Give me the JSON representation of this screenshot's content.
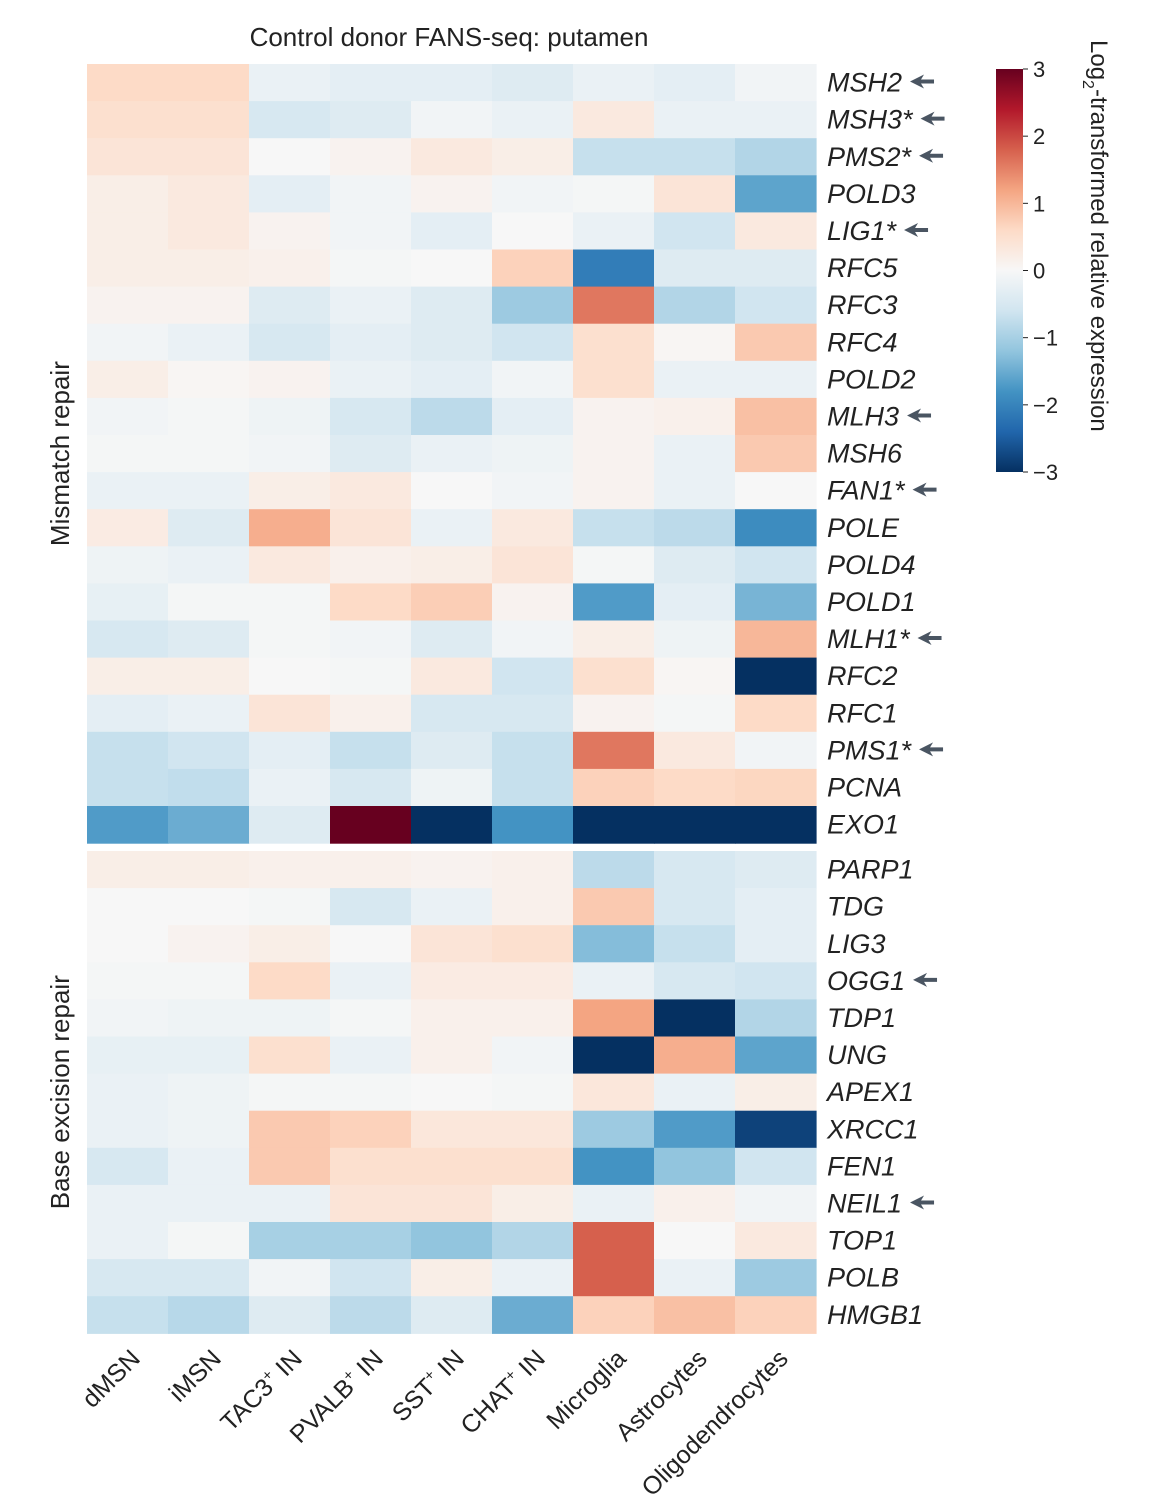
{
  "chart_data": {
    "type": "heatmap",
    "title": "Control donor FANS-seq: putamen",
    "columns": [
      "dMSN",
      "iMSN",
      "TAC3+ IN",
      "PVALB+ IN",
      "SST+ IN",
      "CHAT+ IN",
      "Microglia",
      "Astrocytes",
      "Oligodendrocytes"
    ],
    "column_labels": [
      {
        "base": "dMSN",
        "sup": "",
        "rest": ""
      },
      {
        "base": "iMSN",
        "sup": "",
        "rest": ""
      },
      {
        "base": "TAC3",
        "sup": "+",
        "rest": " IN"
      },
      {
        "base": "PVALB",
        "sup": "+",
        "rest": " IN"
      },
      {
        "base": "SST",
        "sup": "+",
        "rest": " IN"
      },
      {
        "base": "CHAT",
        "sup": "+",
        "rest": " IN"
      },
      {
        "base": "Microglia",
        "sup": "",
        "rest": ""
      },
      {
        "base": "Astrocytes",
        "sup": "",
        "rest": ""
      },
      {
        "base": "Oligodendrocytes",
        "sup": "",
        "rest": ""
      }
    ],
    "groups": [
      {
        "name": "Mismatch repair",
        "rows": [
          {
            "gene": "MSH2",
            "arrow": true,
            "values": [
              0.6,
              0.6,
              -0.2,
              -0.3,
              -0.3,
              -0.4,
              -0.2,
              -0.3,
              -0.1
            ]
          },
          {
            "gene": "MSH3*",
            "arrow": true,
            "values": [
              0.5,
              0.5,
              -0.5,
              -0.4,
              -0.1,
              -0.2,
              0.3,
              -0.2,
              -0.2
            ]
          },
          {
            "gene": "PMS2*",
            "arrow": true,
            "values": [
              0.4,
              0.4,
              0.0,
              0.1,
              0.3,
              0.2,
              -0.7,
              -0.7,
              -0.9
            ]
          },
          {
            "gene": "POLD3",
            "arrow": false,
            "values": [
              0.2,
              0.3,
              -0.3,
              -0.1,
              0.1,
              -0.1,
              -0.05,
              0.4,
              -1.6
            ]
          },
          {
            "gene": "LIG1*",
            "arrow": true,
            "values": [
              0.2,
              0.3,
              0.1,
              -0.1,
              -0.3,
              0.0,
              -0.2,
              -0.6,
              0.3
            ]
          },
          {
            "gene": "RFC5",
            "arrow": false,
            "values": [
              0.2,
              0.2,
              0.15,
              -0.05,
              0.0,
              0.7,
              -2.1,
              -0.4,
              -0.4
            ]
          },
          {
            "gene": "RFC3",
            "arrow": false,
            "values": [
              0.1,
              0.1,
              -0.4,
              -0.2,
              -0.4,
              -1.1,
              1.6,
              -0.9,
              -0.6
            ]
          },
          {
            "gene": "RFC4",
            "arrow": false,
            "values": [
              -0.1,
              -0.2,
              -0.5,
              -0.3,
              -0.4,
              -0.6,
              0.5,
              0.05,
              0.8
            ]
          },
          {
            "gene": "POLD2",
            "arrow": false,
            "values": [
              0.2,
              0.05,
              0.1,
              -0.2,
              -0.3,
              -0.1,
              0.5,
              -0.2,
              -0.2
            ]
          },
          {
            "gene": "MLH3",
            "arrow": true,
            "values": [
              -0.1,
              -0.05,
              -0.15,
              -0.5,
              -0.8,
              -0.3,
              0.1,
              0.15,
              0.9
            ]
          },
          {
            "gene": "MSH6",
            "arrow": false,
            "values": [
              -0.05,
              -0.05,
              -0.1,
              -0.4,
              -0.2,
              -0.15,
              0.1,
              -0.2,
              0.8
            ]
          },
          {
            "gene": "FAN1*",
            "arrow": true,
            "values": [
              -0.2,
              -0.2,
              0.2,
              0.3,
              0.0,
              -0.1,
              0.1,
              -0.2,
              0.0
            ]
          },
          {
            "gene": "POLE",
            "arrow": false,
            "values": [
              0.25,
              -0.4,
              1.1,
              0.4,
              -0.2,
              0.3,
              -0.7,
              -0.8,
              -1.9
            ]
          },
          {
            "gene": "POLD4",
            "arrow": false,
            "values": [
              -0.15,
              -0.2,
              0.3,
              0.15,
              0.2,
              0.4,
              -0.05,
              -0.4,
              -0.6
            ]
          },
          {
            "gene": "POLD1",
            "arrow": false,
            "values": [
              -0.25,
              -0.05,
              -0.05,
              0.6,
              0.75,
              0.1,
              -1.7,
              -0.3,
              -1.4
            ]
          },
          {
            "gene": "MLH1*",
            "arrow": true,
            "values": [
              -0.5,
              -0.4,
              -0.05,
              -0.1,
              -0.4,
              -0.1,
              0.2,
              -0.15,
              1.0
            ]
          },
          {
            "gene": "RFC2",
            "arrow": false,
            "values": [
              0.2,
              0.2,
              0.0,
              -0.05,
              0.3,
              -0.6,
              0.5,
              0.05,
              -3.0
            ]
          },
          {
            "gene": "RFC1",
            "arrow": false,
            "values": [
              -0.3,
              -0.2,
              0.4,
              0.15,
              -0.5,
              -0.5,
              0.1,
              -0.05,
              0.6
            ]
          },
          {
            "gene": "PMS1*",
            "arrow": true,
            "values": [
              -0.7,
              -0.6,
              -0.3,
              -0.7,
              -0.4,
              -0.7,
              1.6,
              0.3,
              -0.1
            ]
          },
          {
            "gene": "PCNA",
            "arrow": false,
            "values": [
              -0.7,
              -0.75,
              -0.2,
              -0.5,
              -0.15,
              -0.7,
              0.7,
              0.6,
              0.65
            ]
          },
          {
            "gene": "EXO1",
            "arrow": false,
            "values": [
              -1.7,
              -1.5,
              -0.4,
              3.0,
              -3.0,
              -1.8,
              -3.0,
              -3.0,
              -3.0
            ]
          }
        ]
      },
      {
        "name": "Base excision repair",
        "rows": [
          {
            "gene": "PARP1",
            "arrow": false,
            "values": [
              0.2,
              0.2,
              0.15,
              0.15,
              0.1,
              0.15,
              -0.8,
              -0.5,
              -0.4
            ]
          },
          {
            "gene": "TDG",
            "arrow": false,
            "values": [
              0.0,
              0.0,
              -0.05,
              -0.5,
              -0.2,
              0.15,
              0.8,
              -0.5,
              -0.3
            ]
          },
          {
            "gene": "LIG3",
            "arrow": false,
            "values": [
              0.0,
              0.1,
              0.2,
              0.0,
              0.4,
              0.5,
              -1.3,
              -0.7,
              -0.3
            ]
          },
          {
            "gene": "OGG1",
            "arrow": true,
            "values": [
              -0.05,
              -0.05,
              0.6,
              -0.2,
              0.25,
              0.25,
              -0.2,
              -0.5,
              -0.6
            ]
          },
          {
            "gene": "TDP1",
            "arrow": false,
            "values": [
              -0.1,
              -0.15,
              -0.15,
              -0.05,
              0.15,
              0.15,
              1.2,
              -3.0,
              -0.9
            ]
          },
          {
            "gene": "UNG",
            "arrow": false,
            "values": [
              -0.25,
              -0.25,
              0.5,
              -0.2,
              0.15,
              -0.1,
              -3.0,
              1.1,
              -1.6
            ]
          },
          {
            "gene": "APEX1",
            "arrow": false,
            "values": [
              -0.2,
              -0.15,
              -0.05,
              -0.05,
              0.0,
              -0.05,
              0.35,
              -0.2,
              0.2
            ]
          },
          {
            "gene": "XRCC1",
            "arrow": false,
            "values": [
              -0.2,
              -0.15,
              0.8,
              0.7,
              0.35,
              0.35,
              -1.1,
              -1.7,
              -2.8
            ]
          },
          {
            "gene": "FEN1",
            "arrow": false,
            "values": [
              -0.5,
              -0.2,
              0.8,
              0.5,
              0.5,
              0.5,
              -1.8,
              -1.2,
              -0.6
            ]
          },
          {
            "gene": "NEIL1",
            "arrow": true,
            "values": [
              -0.2,
              -0.2,
              -0.2,
              0.4,
              0.4,
              0.2,
              -0.2,
              0.15,
              -0.1
            ]
          },
          {
            "gene": "TOP1",
            "arrow": false,
            "values": [
              -0.2,
              -0.05,
              -1.0,
              -1.0,
              -1.2,
              -0.9,
              1.8,
              0.0,
              0.3
            ]
          },
          {
            "gene": "POLB",
            "arrow": false,
            "values": [
              -0.5,
              -0.5,
              -0.1,
              -0.6,
              0.2,
              -0.2,
              1.8,
              -0.2,
              -1.1
            ]
          },
          {
            "gene": "HMGB1",
            "arrow": false,
            "values": [
              -0.7,
              -0.85,
              -0.4,
              -0.8,
              -0.4,
              -1.5,
              0.7,
              0.9,
              0.7
            ]
          }
        ]
      }
    ],
    "colorbar": {
      "label": "Log2-transformed relative expression",
      "label_base": "Log",
      "label_sub": "2",
      "label_rest": "-transformed relative expression",
      "min": -3,
      "max": 3,
      "ticks": [
        3,
        2,
        1,
        0,
        -1,
        -2,
        -3
      ],
      "tick_labels": [
        "3",
        "2",
        "1",
        "0",
        "−1",
        "−2",
        "−3"
      ],
      "colormap": "RdBu_r"
    }
  },
  "colors": {
    "arrow": "#4a5562",
    "text": "#222222"
  }
}
